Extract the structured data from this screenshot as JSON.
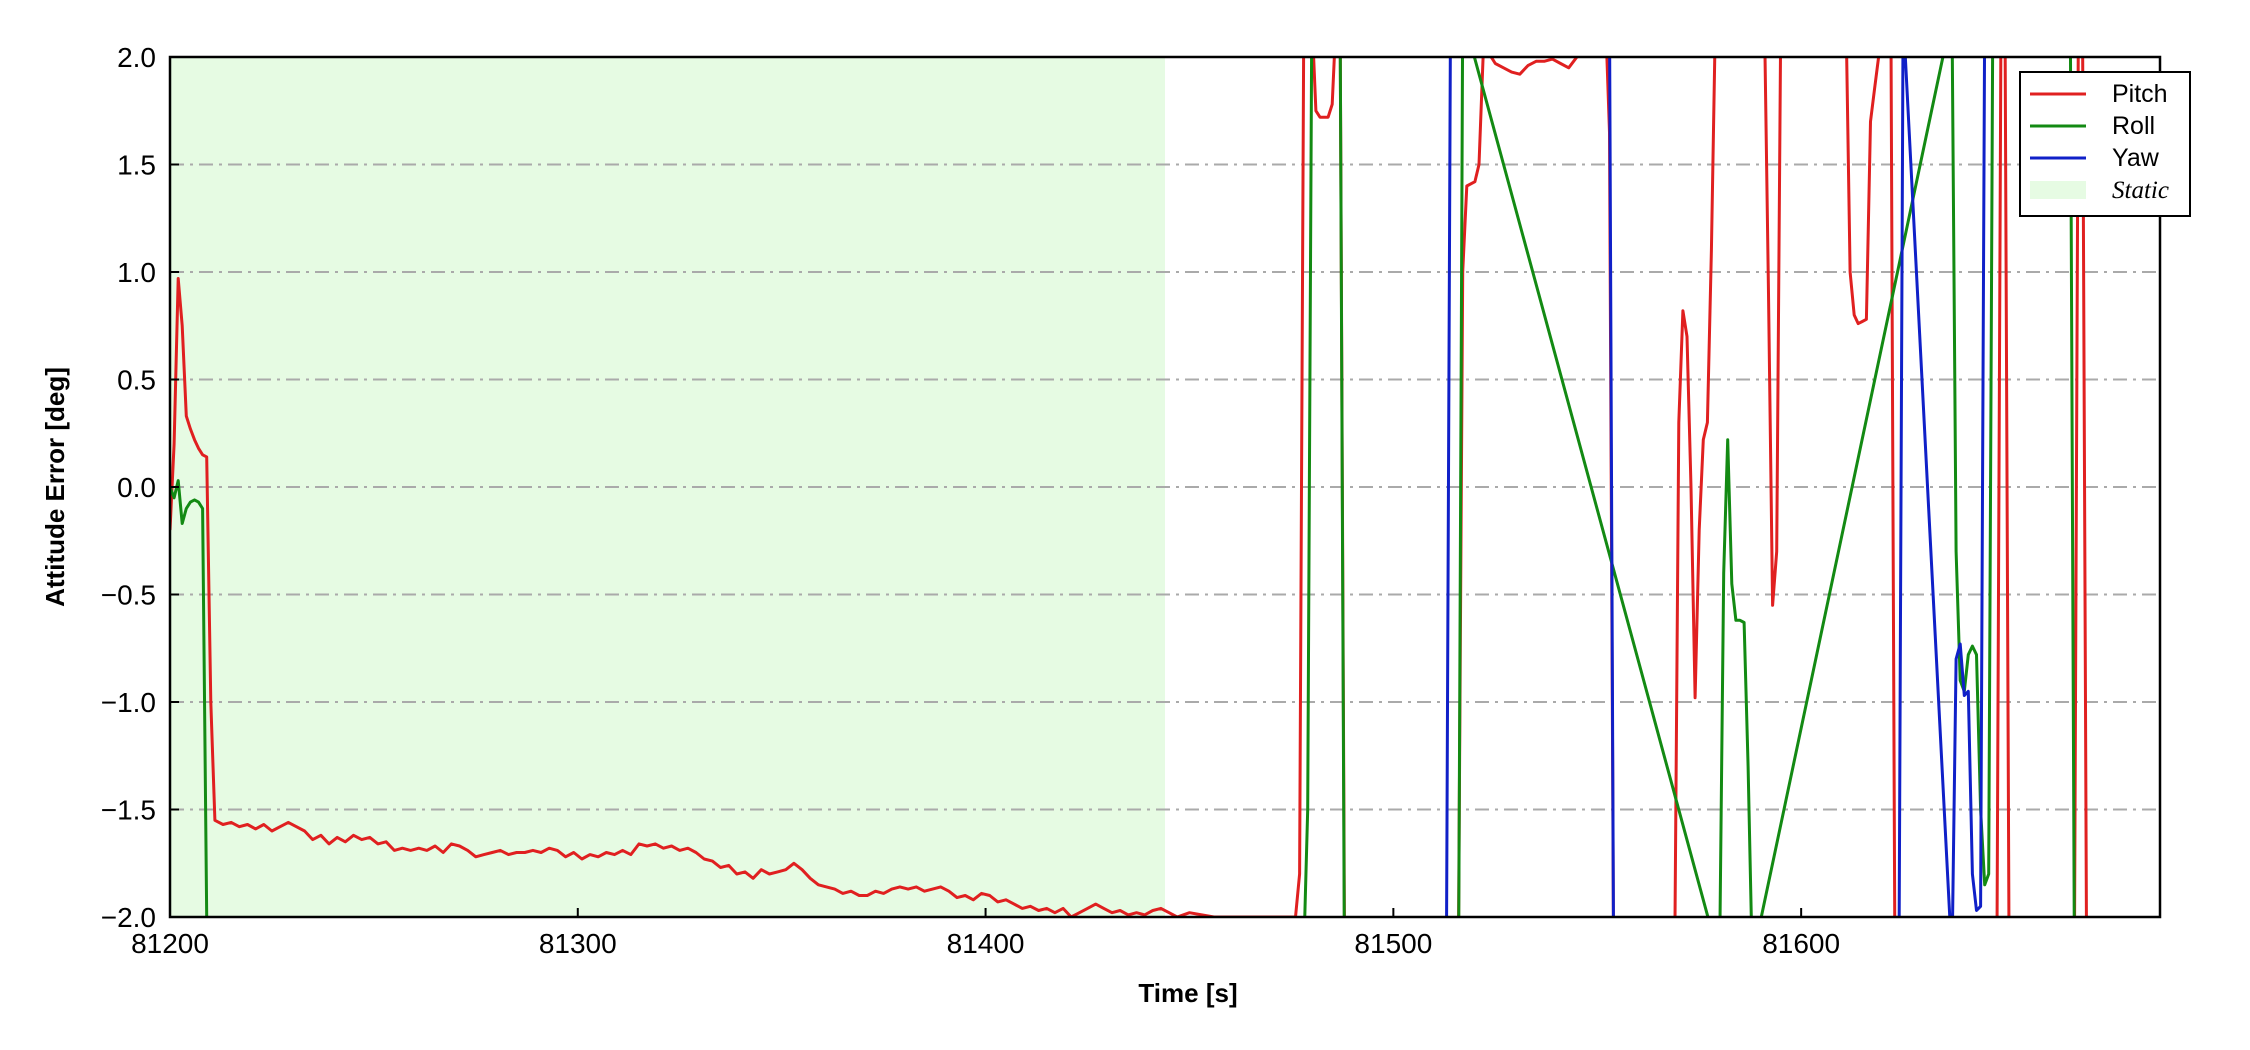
{
  "chart_data": {
    "type": "line",
    "title": "",
    "xlabel": "Time [s]",
    "ylabel": "Attitude Error [deg]",
    "xlim": [
      81200,
      81688
    ],
    "ylim": [
      -2.0,
      2.0
    ],
    "x_ticks": [
      81200,
      81300,
      81400,
      81500,
      81600
    ],
    "x_tick_labels": [
      "81200",
      "81300",
      "81400",
      "81500",
      "81600"
    ],
    "y_ticks": [
      -2.0,
      -1.5,
      -1.0,
      -0.5,
      0.0,
      0.5,
      1.0,
      1.5,
      2.0
    ],
    "y_tick_labels": [
      "−2.0",
      "−1.5",
      "−1.0",
      "−0.5",
      "0.0",
      "0.5",
      "1.0",
      "1.5",
      "2.0"
    ],
    "grid": {
      "axis": "y",
      "style": "dash-dot",
      "color": "#aaaaaa"
    },
    "legend_position": "top-right",
    "legend": [
      "Pitch",
      "Roll",
      "Yaw",
      "Static"
    ],
    "shaded_regions": [
      {
        "name": "Static",
        "x_start": 81200,
        "x_end": 81444,
        "color": "#e6fbe3"
      }
    ],
    "series": [
      {
        "name": "Pitch",
        "color": "#e02020",
        "points": [
          [
            81200,
            -0.2
          ],
          [
            81201,
            0.2
          ],
          [
            81202,
            0.97
          ],
          [
            81203,
            0.75
          ],
          [
            81204,
            0.33
          ],
          [
            81205,
            0.27
          ],
          [
            81206,
            0.22
          ],
          [
            81207,
            0.18
          ],
          [
            81208,
            0.15
          ],
          [
            81209,
            0.14
          ],
          [
            81210,
            -1.0
          ],
          [
            81211,
            -1.55
          ],
          [
            81213,
            -1.57
          ],
          [
            81215,
            -1.56
          ],
          [
            81217,
            -1.58
          ],
          [
            81219,
            -1.57
          ],
          [
            81221,
            -1.59
          ],
          [
            81223,
            -1.57
          ],
          [
            81225,
            -1.6
          ],
          [
            81227,
            -1.58
          ],
          [
            81229,
            -1.56
          ],
          [
            81231,
            -1.58
          ],
          [
            81233,
            -1.6
          ],
          [
            81235,
            -1.64
          ],
          [
            81237,
            -1.62
          ],
          [
            81239,
            -1.66
          ],
          [
            81241,
            -1.63
          ],
          [
            81243,
            -1.65
          ],
          [
            81245,
            -1.62
          ],
          [
            81247,
            -1.64
          ],
          [
            81249,
            -1.63
          ],
          [
            81251,
            -1.66
          ],
          [
            81253,
            -1.65
          ],
          [
            81255,
            -1.69
          ],
          [
            81257,
            -1.68
          ],
          [
            81259,
            -1.69
          ],
          [
            81261,
            -1.68
          ],
          [
            81263,
            -1.69
          ],
          [
            81265,
            -1.67
          ],
          [
            81267,
            -1.7
          ],
          [
            81269,
            -1.66
          ],
          [
            81271,
            -1.67
          ],
          [
            81273,
            -1.69
          ],
          [
            81275,
            -1.72
          ],
          [
            81277,
            -1.71
          ],
          [
            81279,
            -1.7
          ],
          [
            81281,
            -1.69
          ],
          [
            81283,
            -1.71
          ],
          [
            81285,
            -1.7
          ],
          [
            81287,
            -1.7
          ],
          [
            81289,
            -1.69
          ],
          [
            81291,
            -1.7
          ],
          [
            81293,
            -1.68
          ],
          [
            81295,
            -1.69
          ],
          [
            81297,
            -1.72
          ],
          [
            81299,
            -1.7
          ],
          [
            81301,
            -1.73
          ],
          [
            81303,
            -1.71
          ],
          [
            81305,
            -1.72
          ],
          [
            81307,
            -1.7
          ],
          [
            81309,
            -1.71
          ],
          [
            81311,
            -1.69
          ],
          [
            81313,
            -1.71
          ],
          [
            81315,
            -1.66
          ],
          [
            81317,
            -1.67
          ],
          [
            81319,
            -1.66
          ],
          [
            81321,
            -1.68
          ],
          [
            81323,
            -1.67
          ],
          [
            81325,
            -1.69
          ],
          [
            81327,
            -1.68
          ],
          [
            81329,
            -1.7
          ],
          [
            81331,
            -1.73
          ],
          [
            81333,
            -1.74
          ],
          [
            81335,
            -1.77
          ],
          [
            81337,
            -1.76
          ],
          [
            81339,
            -1.8
          ],
          [
            81341,
            -1.79
          ],
          [
            81343,
            -1.82
          ],
          [
            81345,
            -1.78
          ],
          [
            81347,
            -1.8
          ],
          [
            81349,
            -1.79
          ],
          [
            81351,
            -1.78
          ],
          [
            81353,
            -1.75
          ],
          [
            81355,
            -1.78
          ],
          [
            81357,
            -1.82
          ],
          [
            81359,
            -1.85
          ],
          [
            81361,
            -1.86
          ],
          [
            81363,
            -1.87
          ],
          [
            81365,
            -1.89
          ],
          [
            81367,
            -1.88
          ],
          [
            81369,
            -1.9
          ],
          [
            81371,
            -1.9
          ],
          [
            81373,
            -1.88
          ],
          [
            81375,
            -1.89
          ],
          [
            81377,
            -1.87
          ],
          [
            81379,
            -1.86
          ],
          [
            81381,
            -1.87
          ],
          [
            81383,
            -1.86
          ],
          [
            81385,
            -1.88
          ],
          [
            81387,
            -1.87
          ],
          [
            81389,
            -1.86
          ],
          [
            81391,
            -1.88
          ],
          [
            81393,
            -1.91
          ],
          [
            81395,
            -1.9
          ],
          [
            81397,
            -1.92
          ],
          [
            81399,
            -1.89
          ],
          [
            81401,
            -1.9
          ],
          [
            81403,
            -1.93
          ],
          [
            81405,
            -1.92
          ],
          [
            81407,
            -1.94
          ],
          [
            81409,
            -1.96
          ],
          [
            81411,
            -1.95
          ],
          [
            81413,
            -1.97
          ],
          [
            81415,
            -1.96
          ],
          [
            81417,
            -1.98
          ],
          [
            81419,
            -1.96
          ],
          [
            81421,
            -2.0
          ],
          [
            81423,
            -1.98
          ],
          [
            81425,
            -1.96
          ],
          [
            81427,
            -1.94
          ],
          [
            81429,
            -1.96
          ],
          [
            81431,
            -1.98
          ],
          [
            81433,
            -1.97
          ],
          [
            81435,
            -1.99
          ],
          [
            81437,
            -1.98
          ],
          [
            81439,
            -1.99
          ],
          [
            81441,
            -1.97
          ],
          [
            81443,
            -1.96
          ],
          [
            81445,
            -1.98
          ],
          [
            81447,
            -2.0
          ],
          [
            81450,
            -1.98
          ],
          [
            81453,
            -1.99
          ],
          [
            81456,
            -2.0
          ],
          [
            81476,
            -2.0
          ],
          [
            81477,
            -1.8
          ],
          [
            81478,
            2.0
          ],
          [
            81480,
            2.2
          ],
          [
            81481,
            1.75
          ],
          [
            81482,
            1.72
          ],
          [
            81484,
            1.72
          ],
          [
            81485,
            1.78
          ],
          [
            81486,
            2.2
          ],
          [
            81487,
            2.0
          ],
          [
            81488,
            -2.0
          ],
          [
            81489,
            -2.2
          ],
          [
            81515,
            -2.2
          ],
          [
            81516,
            -2.0
          ],
          [
            81517,
            1.0
          ],
          [
            81518,
            1.4
          ],
          [
            81520,
            1.42
          ],
          [
            81521,
            1.5
          ],
          [
            81522,
            2.0
          ],
          [
            81523,
            2.2
          ],
          [
            81524,
            2.0
          ],
          [
            81525,
            1.97
          ],
          [
            81527,
            1.95
          ],
          [
            81529,
            1.93
          ],
          [
            81531,
            1.92
          ],
          [
            81533,
            1.96
          ],
          [
            81535,
            1.98
          ],
          [
            81537,
            1.98
          ],
          [
            81539,
            1.99
          ],
          [
            81541,
            1.97
          ],
          [
            81543,
            1.95
          ],
          [
            81545,
            2.0
          ],
          [
            81546,
            2.2
          ],
          [
            81552,
            2.2
          ],
          [
            81553,
            1.65
          ],
          [
            81554,
            -2.2
          ],
          [
            81569,
            -2.2
          ],
          [
            81570,
            0.3
          ],
          [
            81571,
            0.82
          ],
          [
            81572,
            0.7
          ],
          [
            81573,
            0.0
          ],
          [
            81574,
            -0.98
          ],
          [
            81575,
            -0.2
          ],
          [
            81576,
            0.22
          ],
          [
            81577,
            0.3
          ],
          [
            81578,
            1.1
          ],
          [
            81579,
            2.2
          ],
          [
            81591,
            2.2
          ],
          [
            81592,
            0.9
          ],
          [
            81593,
            -0.55
          ],
          [
            81594,
            -0.3
          ],
          [
            81595,
            2.2
          ],
          [
            81611,
            2.2
          ],
          [
            81612,
            1.0
          ],
          [
            81613,
            0.8
          ],
          [
            81614,
            0.76
          ],
          [
            81615,
            0.77
          ],
          [
            81616,
            0.78
          ],
          [
            81617,
            1.7
          ],
          [
            81618,
            1.85
          ],
          [
            81619,
            2.0
          ],
          [
            81620,
            2.2
          ],
          [
            81622,
            2.2
          ],
          [
            81623,
            -2.2
          ],
          [
            81648,
            -2.2
          ],
          [
            81649,
            2.2
          ],
          [
            81650,
            2.2
          ],
          [
            81651,
            -2.2
          ],
          [
            81667,
            -2.2
          ],
          [
            81668,
            2.2
          ],
          [
            81669,
            2.2
          ],
          [
            81670,
            -2.2
          ]
        ]
      },
      {
        "name": "Roll",
        "color": "#138a13",
        "points": [
          [
            81200,
            0.0
          ],
          [
            81201,
            -0.05
          ],
          [
            81202,
            0.03
          ],
          [
            81203,
            -0.17
          ],
          [
            81204,
            -0.1
          ],
          [
            81205,
            -0.07
          ],
          [
            81206,
            -0.06
          ],
          [
            81207,
            -0.07
          ],
          [
            81208,
            -0.1
          ],
          [
            81209,
            -2.0
          ],
          [
            81209.5,
            -2.2
          ],
          [
            81478,
            -2.2
          ],
          [
            81479,
            -1.5
          ],
          [
            81480,
            2.2
          ],
          [
            81486,
            2.2
          ],
          [
            81487,
            2.0
          ],
          [
            81488,
            -2.2
          ],
          [
            81516,
            -2.2
          ],
          [
            81517,
            2.2
          ],
          [
            81580,
            -2.2
          ],
          [
            81581,
            -0.4
          ],
          [
            81582,
            0.22
          ],
          [
            81583,
            -0.45
          ],
          [
            81584,
            -0.62
          ],
          [
            81585,
            -0.62
          ],
          [
            81586,
            -0.63
          ],
          [
            81587,
            -1.3
          ],
          [
            81588,
            -2.2
          ],
          [
            81637,
            2.2
          ],
          [
            81638,
            -0.3
          ],
          [
            81639,
            -0.9
          ],
          [
            81640,
            -0.95
          ],
          [
            81641,
            -0.78
          ],
          [
            81642,
            -0.74
          ],
          [
            81643,
            -0.78
          ],
          [
            81644,
            -1.5
          ],
          [
            81645,
            -1.85
          ],
          [
            81646,
            -1.8
          ],
          [
            81647,
            2.2
          ],
          [
            81648,
            2.2
          ],
          [
            81666,
            2.2
          ],
          [
            81667,
            -2.2
          ]
        ]
      },
      {
        "name": "Yaw",
        "color": "#1020c8",
        "points": [
          [
            81513,
            -2.2
          ],
          [
            81514,
            2.2
          ],
          [
            81553,
            2.2
          ],
          [
            81554,
            -2.2
          ],
          [
            81624,
            -2.2
          ],
          [
            81625,
            2.2
          ],
          [
            81637,
            -2.2
          ],
          [
            81638,
            -0.8
          ],
          [
            81639,
            -0.73
          ],
          [
            81640,
            -0.97
          ],
          [
            81641,
            -0.95
          ],
          [
            81642,
            -1.8
          ],
          [
            81643,
            -1.97
          ],
          [
            81644,
            -1.95
          ],
          [
            81645,
            2.2
          ]
        ]
      }
    ]
  }
}
